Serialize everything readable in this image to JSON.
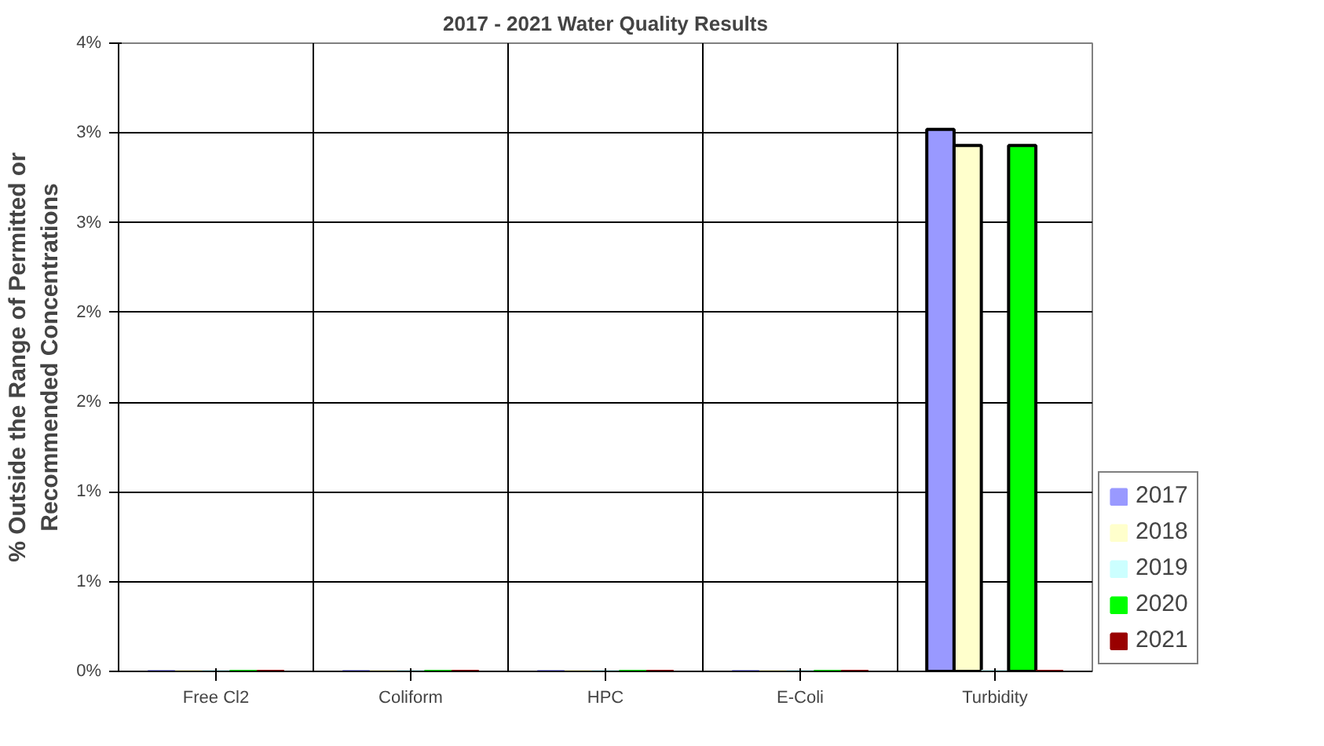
{
  "chart_data": {
    "type": "bar",
    "title": "2017 - 2021 Water Quality Results",
    "ylabel": "% Outside the Range of Permitted or\nRecommended Concentrations",
    "categories": [
      "Free Cl2",
      "Coliform",
      "HPC",
      "E-Coli",
      "Turbidity"
    ],
    "series": [
      {
        "name": "2017",
        "color": "#9999ff",
        "values": [
          0,
          0,
          0,
          0,
          3.02
        ]
      },
      {
        "name": "2018",
        "color": "#ffffcc",
        "values": [
          0,
          0,
          0,
          0,
          2.93
        ]
      },
      {
        "name": "2019",
        "color": "#ccffff",
        "values": [
          0,
          0,
          0,
          0,
          0
        ]
      },
      {
        "name": "2020",
        "color": "#00ff00",
        "values": [
          0,
          0,
          0,
          0,
          2.93
        ]
      },
      {
        "name": "2021",
        "color": "#990000",
        "values": [
          0,
          0,
          0,
          0,
          0
        ]
      }
    ],
    "ylim": [
      0,
      3.5
    ],
    "yticks": [
      {
        "value": 0,
        "label": "0%"
      },
      {
        "value": 0.5,
        "label": "1%"
      },
      {
        "value": 1,
        "label": "1%"
      },
      {
        "value": 1.5,
        "label": "2%"
      },
      {
        "value": 2,
        "label": "2%"
      },
      {
        "value": 2.5,
        "label": "3%"
      },
      {
        "value": 3,
        "label": "3%"
      },
      {
        "value": 3.5,
        "label": "4%"
      }
    ],
    "grid": true,
    "legend": "right"
  }
}
